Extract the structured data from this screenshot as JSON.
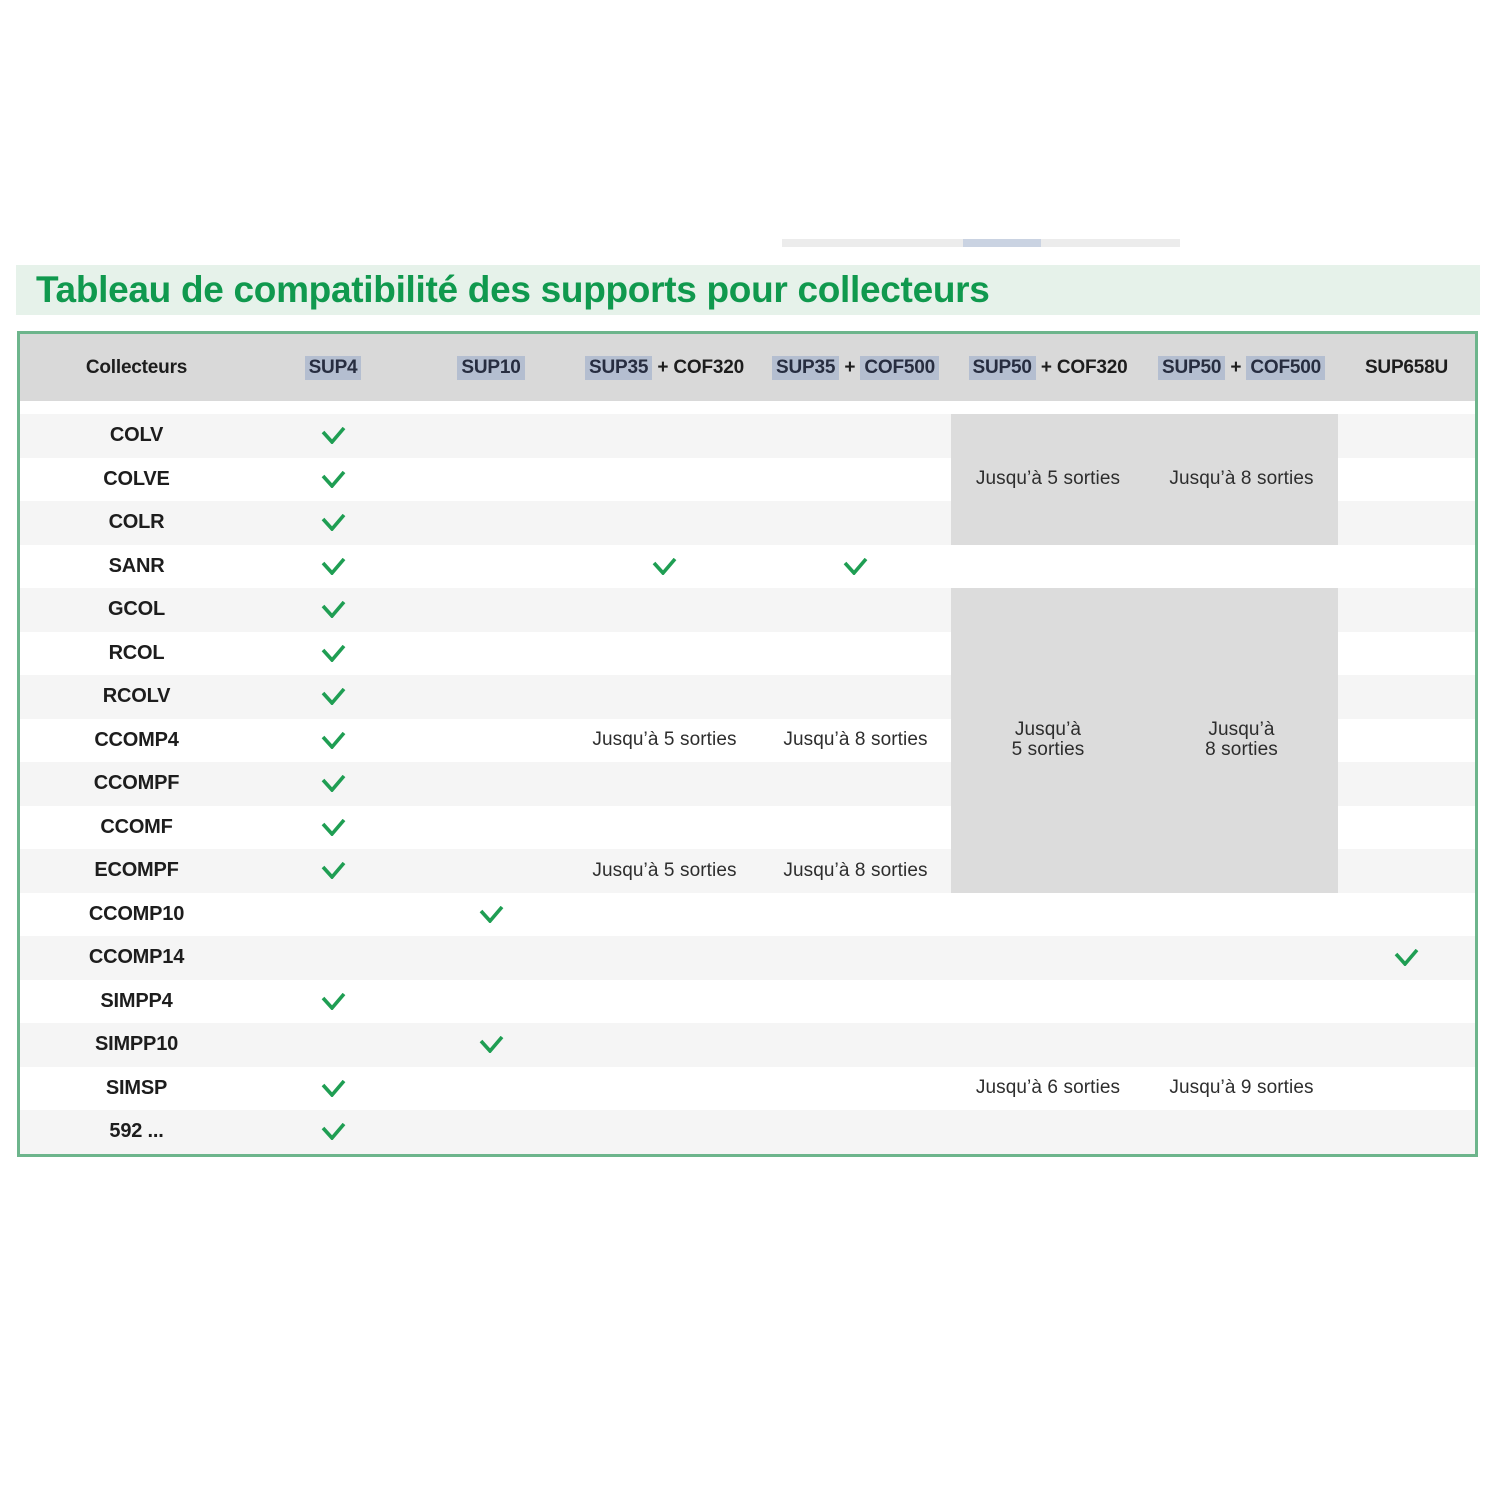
{
  "colors": {
    "title_green": "#10994e",
    "title_band": "#e6f2ea",
    "table_border": "#6db58c",
    "header_bg": "#d9d9d9",
    "header_highlight": "#b4bed0",
    "header_highlight_text": "#272d40",
    "stripe": "#f5f5f5",
    "shade": "#dcdcdc",
    "check_green": "#1f9e53",
    "text_dark": "#1d1d1d",
    "remnant_gray": "#ececec",
    "remnant_blue": "#cad3e2"
  },
  "title": {
    "text": "Tableau de compatibilité des supports pour collecteurs"
  },
  "table": {
    "header": {
      "columns": [
        {
          "id": "collecteurs",
          "parts": [
            {
              "text": "Collecteurs",
              "hl": false
            }
          ]
        },
        {
          "id": "sup4",
          "parts": [
            {
              "text": "SUP4",
              "hl": true
            }
          ]
        },
        {
          "id": "sup10",
          "parts": [
            {
              "text": "SUP10",
              "hl": true
            }
          ]
        },
        {
          "id": "sup35-cof320",
          "parts": [
            {
              "text": "SUP35",
              "hl": true
            },
            {
              "text": "+",
              "hl": false
            },
            {
              "text": "COF320",
              "hl": false
            }
          ]
        },
        {
          "id": "sup35-cof500",
          "parts": [
            {
              "text": "SUP35",
              "hl": true
            },
            {
              "text": "+",
              "hl": false
            },
            {
              "text": "COF500",
              "hl": true
            }
          ]
        },
        {
          "id": "sup50-cof320",
          "parts": [
            {
              "text": "SUP50",
              "hl": true
            },
            {
              "text": "+",
              "hl": false
            },
            {
              "text": "COF320",
              "hl": false
            }
          ]
        },
        {
          "id": "sup50-cof500",
          "parts": [
            {
              "text": "SUP50",
              "hl": true
            },
            {
              "text": "+",
              "hl": false
            },
            {
              "text": "COF500",
              "hl": true
            }
          ]
        },
        {
          "id": "sup658u",
          "parts": [
            {
              "text": "SUP658U",
              "hl": false
            }
          ]
        }
      ]
    },
    "check_symbol": "check",
    "rows": [
      {
        "label": "COLV",
        "shaded": true,
        "cells": [
          "check",
          null,
          null,
          null,
          null,
          null,
          null
        ]
      },
      {
        "label": "COLVE",
        "shaded": true,
        "cells": [
          "check",
          null,
          null,
          null,
          {
            "text": "Jusqu’à 5 sorties"
          },
          {
            "text": "Jusqu’à 8 sorties"
          },
          null
        ]
      },
      {
        "label": "COLR",
        "shaded": true,
        "cells": [
          "check",
          null,
          null,
          null,
          null,
          null,
          null
        ]
      },
      {
        "label": "SANR",
        "shaded": false,
        "cells": [
          "check",
          null,
          "check",
          "check",
          null,
          null,
          null
        ]
      },
      {
        "label": "GCOL",
        "shaded": true,
        "cells": [
          "check",
          null,
          null,
          null,
          null,
          null,
          null
        ]
      },
      {
        "label": "RCOL",
        "shaded": true,
        "cells": [
          "check",
          null,
          null,
          null,
          null,
          null,
          null
        ]
      },
      {
        "label": "RCOLV",
        "shaded": true,
        "cells": [
          "check",
          null,
          null,
          null,
          null,
          null,
          null
        ]
      },
      {
        "label": "CCOMP4",
        "shaded": true,
        "cells": [
          "check",
          null,
          {
            "text": "Jusqu’à 5 sorties"
          },
          {
            "text": "Jusqu’à 8 sorties"
          },
          {
            "lines": [
              "Jusqu’à",
              "5 sorties"
            ]
          },
          {
            "lines": [
              "Jusqu’à",
              "8 sorties"
            ]
          },
          null
        ]
      },
      {
        "label": "CCOMPF",
        "shaded": true,
        "cells": [
          "check",
          null,
          null,
          null,
          null,
          null,
          null
        ]
      },
      {
        "label": "CCOMF",
        "shaded": true,
        "cells": [
          "check",
          null,
          null,
          null,
          null,
          null,
          null
        ]
      },
      {
        "label": "ECOMPF",
        "shaded": true,
        "cells": [
          "check",
          null,
          {
            "text": "Jusqu’à 5 sorties"
          },
          {
            "text": "Jusqu’à 8 sorties"
          },
          null,
          null,
          null
        ]
      },
      {
        "label": "CCOMP10",
        "shaded": false,
        "cells": [
          null,
          "check",
          null,
          null,
          null,
          null,
          null
        ]
      },
      {
        "label": "CCOMP14",
        "shaded": false,
        "cells": [
          null,
          null,
          null,
          null,
          null,
          null,
          "check"
        ]
      },
      {
        "label": "SIMPP4",
        "shaded": false,
        "cells": [
          "check",
          null,
          null,
          null,
          null,
          null,
          null
        ]
      },
      {
        "label": "SIMPP10",
        "shaded": false,
        "cells": [
          null,
          "check",
          null,
          null,
          null,
          null,
          null
        ]
      },
      {
        "label": "SIMSP",
        "shaded": false,
        "cells": [
          "check",
          null,
          null,
          null,
          {
            "text": "Jusqu’à 6 sorties"
          },
          {
            "text": "Jusqu’à 9 sorties"
          },
          null
        ]
      },
      {
        "label": "592 ...",
        "shaded": false,
        "cells": [
          "check",
          null,
          null,
          null,
          null,
          null,
          null
        ]
      }
    ]
  }
}
